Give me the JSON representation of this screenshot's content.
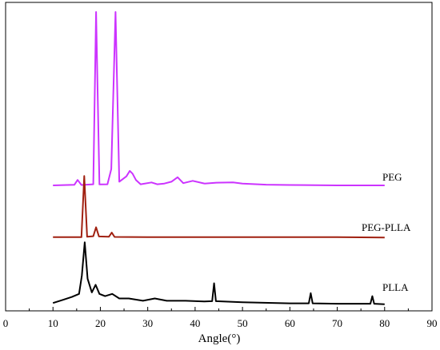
{
  "chart_data": {
    "type": "line",
    "title": "",
    "xlabel": "Angle(°)",
    "ylabel": "",
    "xlim": [
      0,
      90
    ],
    "xticks": [
      "0",
      "10",
      "20",
      "30",
      "40",
      "50",
      "60",
      "70",
      "80",
      "90"
    ],
    "y_ticks_shown": false,
    "grid": false,
    "legend": "none (series names labelled at right end of each trace)",
    "series": [
      {
        "name": "PEG",
        "color": "#cc33ff",
        "peaks": [
          [
            10,
            4.0
          ],
          [
            14.5,
            4.3
          ],
          [
            15.2,
            7.0
          ],
          [
            16.0,
            4.2
          ],
          [
            18.5,
            4.6
          ],
          [
            19.1,
            100.0
          ],
          [
            19.8,
            4.5
          ],
          [
            21.5,
            4.6
          ],
          [
            22.3,
            13.0
          ],
          [
            23.2,
            100.0
          ],
          [
            24.0,
            6.0
          ],
          [
            25.5,
            9.0
          ],
          [
            26.2,
            12.0
          ],
          [
            26.8,
            10.5
          ],
          [
            27.5,
            7.0
          ],
          [
            28.5,
            4.6
          ],
          [
            30.8,
            5.6
          ],
          [
            32.0,
            4.6
          ],
          [
            33.5,
            5.0
          ],
          [
            35.0,
            6.0
          ],
          [
            36.3,
            8.5
          ],
          [
            37.5,
            5.2
          ],
          [
            39.5,
            6.5
          ],
          [
            42.0,
            5.0
          ],
          [
            44.5,
            5.5
          ],
          [
            48.0,
            5.6
          ],
          [
            50.0,
            5.0
          ],
          [
            55.0,
            4.4
          ],
          [
            60.0,
            4.2
          ],
          [
            70.0,
            4.0
          ],
          [
            80,
            4.0
          ]
        ]
      },
      {
        "name": "PEG-PLLA",
        "color": "#a02010",
        "peaks": [
          [
            10,
            1.0
          ],
          [
            16.0,
            1.0
          ],
          [
            16.6,
            35.0
          ],
          [
            17.2,
            1.2
          ],
          [
            18.5,
            1.5
          ],
          [
            19.1,
            6.5
          ],
          [
            19.7,
            1.4
          ],
          [
            21.8,
            1.2
          ],
          [
            22.4,
            3.5
          ],
          [
            23.0,
            1.1
          ],
          [
            30.0,
            1.0
          ],
          [
            40.0,
            1.0
          ],
          [
            50.0,
            1.0
          ],
          [
            60.0,
            1.0
          ],
          [
            70.0,
            1.0
          ],
          [
            80,
            0.8
          ]
        ]
      },
      {
        "name": "PLLA",
        "color": "#000000",
        "peaks": [
          [
            10,
            2.0
          ],
          [
            12.0,
            4.0
          ],
          [
            14.0,
            6.0
          ],
          [
            15.5,
            8.0
          ],
          [
            16.1,
            20.0
          ],
          [
            16.7,
            42.0
          ],
          [
            17.3,
            18.0
          ],
          [
            18.2,
            9.0
          ],
          [
            19.0,
            14.0
          ],
          [
            19.8,
            8.0
          ],
          [
            21.0,
            6.5
          ],
          [
            22.5,
            8.0
          ],
          [
            24.0,
            5.0
          ],
          [
            26.0,
            5.0
          ],
          [
            29.0,
            3.5
          ],
          [
            31.5,
            5.0
          ],
          [
            34.0,
            3.5
          ],
          [
            38.0,
            3.5
          ],
          [
            42.0,
            3.0
          ],
          [
            43.6,
            3.2
          ],
          [
            44.0,
            15.0
          ],
          [
            44.4,
            3.2
          ],
          [
            50.0,
            2.5
          ],
          [
            60.0,
            1.8
          ],
          [
            64.0,
            1.8
          ],
          [
            64.4,
            8.5
          ],
          [
            64.8,
            1.8
          ],
          [
            70.0,
            1.5
          ],
          [
            77.0,
            1.5
          ],
          [
            77.4,
            6.5
          ],
          [
            77.8,
            1.5
          ],
          [
            80,
            1.2
          ]
        ]
      }
    ]
  }
}
